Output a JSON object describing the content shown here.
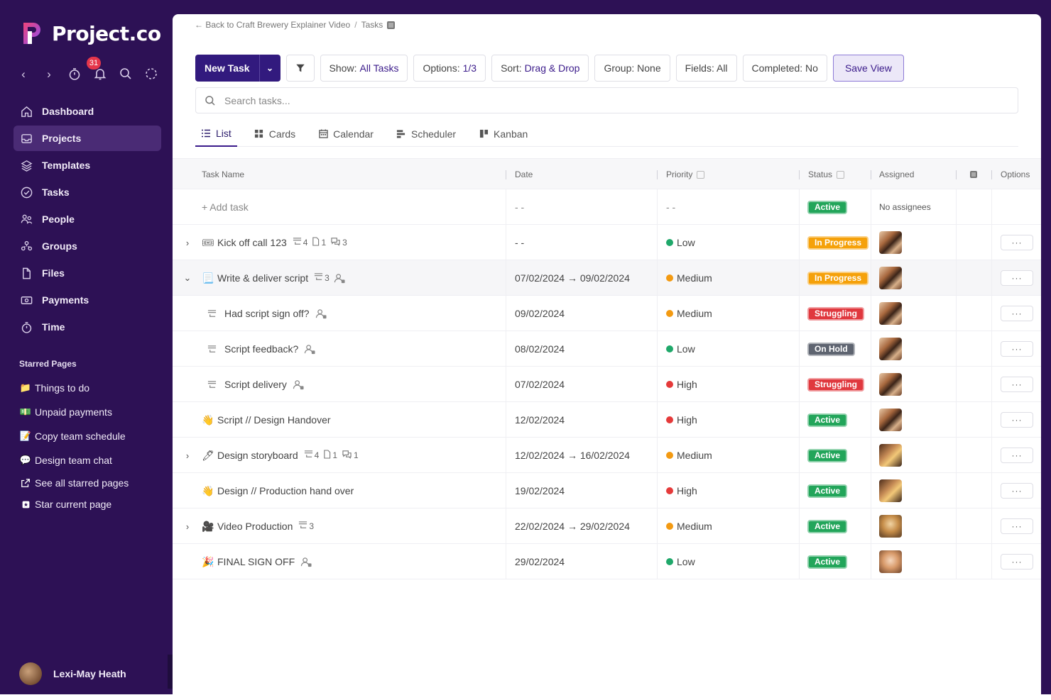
{
  "app": {
    "name": "Project.co"
  },
  "sidebar": {
    "notification_count": "31",
    "nav": [
      {
        "label": "Dashboard",
        "icon": "home-icon"
      },
      {
        "label": "Projects",
        "icon": "inbox-icon",
        "active": true
      },
      {
        "label": "Templates",
        "icon": "layers-icon"
      },
      {
        "label": "Tasks",
        "icon": "check-circle-icon"
      },
      {
        "label": "People",
        "icon": "people-icon"
      },
      {
        "label": "Groups",
        "icon": "groups-icon"
      },
      {
        "label": "Files",
        "icon": "file-icon"
      },
      {
        "label": "Payments",
        "icon": "payment-icon"
      },
      {
        "label": "Time",
        "icon": "stopwatch-icon"
      }
    ],
    "starred_title": "Starred Pages",
    "starred": [
      {
        "label": "Things to do",
        "icon": "folder-emoji-icon"
      },
      {
        "label": "Unpaid payments",
        "icon": "cash-emoji-icon"
      },
      {
        "label": "Copy team schedule",
        "icon": "memo-emoji-icon"
      },
      {
        "label": "Design team chat",
        "icon": "speech-emoji-icon"
      }
    ],
    "see_all_label": "See all starred pages",
    "star_current_label": "Star current page",
    "user_name": "Lexi-May Heath"
  },
  "breadcrumb": {
    "back_label": "← Back to Craft Brewery Explainer Video",
    "current": "Tasks"
  },
  "toolbar": {
    "new_task": "New Task",
    "show_prefix": "Show:",
    "show_value": "All Tasks",
    "options_prefix": "Options:",
    "options_value": "1/3",
    "sort_prefix": "Sort:",
    "sort_value": "Drag & Drop",
    "group_label": "Group: None",
    "fields_label": "Fields: All",
    "completed_label": "Completed: No",
    "save_view": "Save View"
  },
  "search": {
    "placeholder": "Search tasks..."
  },
  "views": [
    {
      "label": "List",
      "active": true
    },
    {
      "label": "Cards"
    },
    {
      "label": "Calendar"
    },
    {
      "label": "Scheduler"
    },
    {
      "label": "Kanban"
    }
  ],
  "columns": {
    "task_name": "Task Name",
    "date": "Date",
    "priority": "Priority",
    "status": "Status",
    "assigned": "Assigned",
    "options": "Options"
  },
  "add_row": {
    "label": "+ Add task",
    "date": "- -",
    "priority": "- -",
    "status": "Active",
    "assigned": "No assignees"
  },
  "status_colors": {
    "Active": "#22a55a",
    "In Progress": "#f5a10a",
    "Struggling": "#e0383e",
    "On Hold": "#5e6470"
  },
  "priority_colors": {
    "Low": "#1fa86a",
    "Medium": "#f39a12",
    "High": "#e53a3a"
  },
  "tasks": [
    {
      "name": "Kick off call 123",
      "emoji": "🎟",
      "expander": "›",
      "subtasks": "4",
      "files": "1",
      "comments": "3",
      "date": "- -",
      "priority": "Low",
      "status": "In Progress",
      "avatar": "a"
    },
    {
      "name": "Write & deliver script",
      "emoji": "📃",
      "expander": "⌄",
      "subtasks": "3",
      "assignee_icon": true,
      "date": "07/02/2024 → 09/02/2024",
      "priority": "Medium",
      "status": "In Progress",
      "avatar": "a",
      "highlight": true
    },
    {
      "name": "Had script sign off?",
      "sub": true,
      "assignee_icon": true,
      "date": "09/02/2024",
      "priority": "Medium",
      "status": "Struggling",
      "avatar": "a"
    },
    {
      "name": "Script feedback?",
      "sub": true,
      "assignee_icon": true,
      "date": "08/02/2024",
      "priority": "Low",
      "status": "On Hold",
      "avatar": "a"
    },
    {
      "name": "Script delivery",
      "sub": true,
      "assignee_icon": true,
      "date": "07/02/2024",
      "priority": "High",
      "status": "Struggling",
      "avatar": "a"
    },
    {
      "name": "Script // Design Handover",
      "emoji": "👋",
      "date": "12/02/2024",
      "priority": "High",
      "status": "Active",
      "avatar": "a"
    },
    {
      "name": "Design storyboard",
      "emoji": "🖊",
      "expander": "›",
      "subtasks": "4",
      "files": "1",
      "comments": "1",
      "date": "12/02/2024 → 16/02/2024",
      "priority": "Medium",
      "status": "Active",
      "avatar": "b"
    },
    {
      "name": "Design // Production hand over",
      "emoji": "👋",
      "date": "19/02/2024",
      "priority": "High",
      "status": "Active",
      "avatar": "b"
    },
    {
      "name": "Video Production",
      "emoji": "🎥",
      "expander": "›",
      "subtasks": "3",
      "date": "22/02/2024 → 29/02/2024",
      "priority": "Medium",
      "status": "Active",
      "avatar": "c"
    },
    {
      "name": "FINAL SIGN OFF",
      "emoji": "🎉",
      "assignee_icon": true,
      "date": "29/02/2024",
      "priority": "Low",
      "status": "Active",
      "avatar": "d"
    }
  ]
}
